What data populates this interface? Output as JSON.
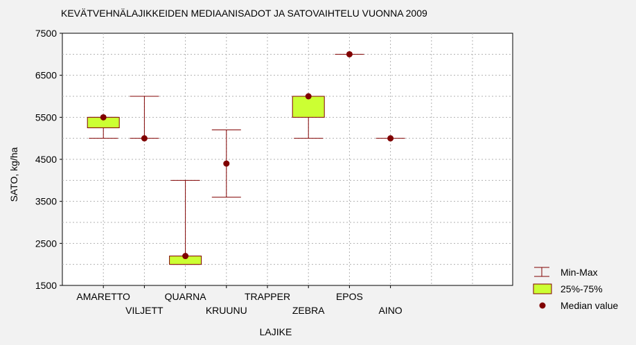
{
  "chart_data": {
    "type": "box",
    "title": "KEVÄTVEHNÄLAJIKKEIDEN MEDIAANISADOT JA SATOVAIHTELU VUONNA 2009",
    "xlabel": "LAJIKE",
    "ylabel": "SATO, kg/ha",
    "ylim": [
      1500,
      7500
    ],
    "yticks": [
      1500,
      2500,
      3500,
      4500,
      5500,
      6500,
      7500
    ],
    "grid": true,
    "legend_position": "bottom-right",
    "categories": [
      "AMARETTO",
      "VILJETT",
      "QUARNA",
      "KRUUNU",
      "TRAPPER",
      "ZEBRA",
      "EPOS",
      "AINO"
    ],
    "series": [
      {
        "category": "AMARETTO",
        "min": 5000,
        "q1": 5250,
        "median": 5500,
        "q3": 5500,
        "max": 5500
      },
      {
        "category": "VILJETT",
        "min": 5000,
        "q1": 5000,
        "median": 5000,
        "q3": 5000,
        "max": 6000
      },
      {
        "category": "QUARNA",
        "min": 2000,
        "q1": 2000,
        "median": 2200,
        "q3": 2200,
        "max": 4000
      },
      {
        "category": "KRUUNU",
        "min": 3600,
        "q1": 4400,
        "median": 4400,
        "q3": 4400,
        "max": 5200
      },
      {
        "category": "TRAPPER",
        "min": null,
        "q1": null,
        "median": null,
        "q3": null,
        "max": null
      },
      {
        "category": "ZEBRA",
        "min": 5000,
        "q1": 5500,
        "median": 6000,
        "q3": 6000,
        "max": 6000
      },
      {
        "category": "EPOS",
        "min": 7000,
        "q1": 7000,
        "median": 7000,
        "q3": 7000,
        "max": 7000
      },
      {
        "category": "AINO",
        "min": 5000,
        "q1": 5000,
        "median": 5000,
        "q3": 5000,
        "max": 5000
      }
    ],
    "legend": {
      "minmax": "Min-Max",
      "box": "25%-75%",
      "median": "Median value"
    },
    "colors": {
      "whisker": "#800000",
      "box_fill": "#ccff33",
      "box_stroke": "#800000",
      "median": "#800000",
      "plot_bg": "#ffffff",
      "grid": "#b0b0b0"
    }
  }
}
